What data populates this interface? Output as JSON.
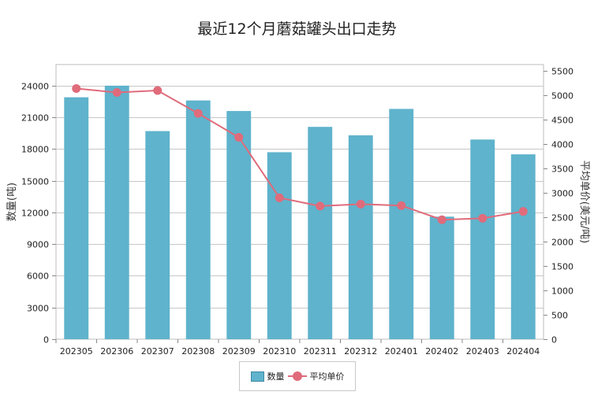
{
  "title": "最近12个月蘑菇罐头出口走势",
  "colors": {
    "bar": "#5fb3cc",
    "bar_border": "#3f8aa2",
    "line": "#e06b7b",
    "grid": "#c8c8c8"
  },
  "chart_data": {
    "type": "bar",
    "categories": [
      "202305",
      "202306",
      "202307",
      "202308",
      "202309",
      "202310",
      "202311",
      "202312",
      "202401",
      "202402",
      "202403",
      "202404"
    ],
    "series": [
      {
        "name": "数量",
        "type": "bar",
        "axis": "left",
        "values": [
          22900,
          24000,
          19700,
          22600,
          21600,
          17700,
          20100,
          19300,
          21800,
          11600,
          18900,
          17500
        ]
      },
      {
        "name": "平均单价",
        "type": "line",
        "axis": "right",
        "values": [
          5140,
          5060,
          5100,
          4630,
          4140,
          2900,
          2730,
          2770,
          2740,
          2450,
          2480,
          2620
        ]
      }
    ],
    "ylabel": "数量(吨)",
    "y2label": "平均单价(美元/吨)",
    "ylim": [
      0,
      26000
    ],
    "y2lim": [
      0,
      5633
    ],
    "yticks": [
      0,
      3000,
      6000,
      9000,
      12000,
      15000,
      18000,
      21000,
      24000
    ],
    "y2ticks": [
      0,
      500,
      1000,
      1500,
      2000,
      2500,
      3000,
      3500,
      4000,
      4500,
      5000,
      5500
    ],
    "grid": true,
    "legend_position": "bottom"
  }
}
